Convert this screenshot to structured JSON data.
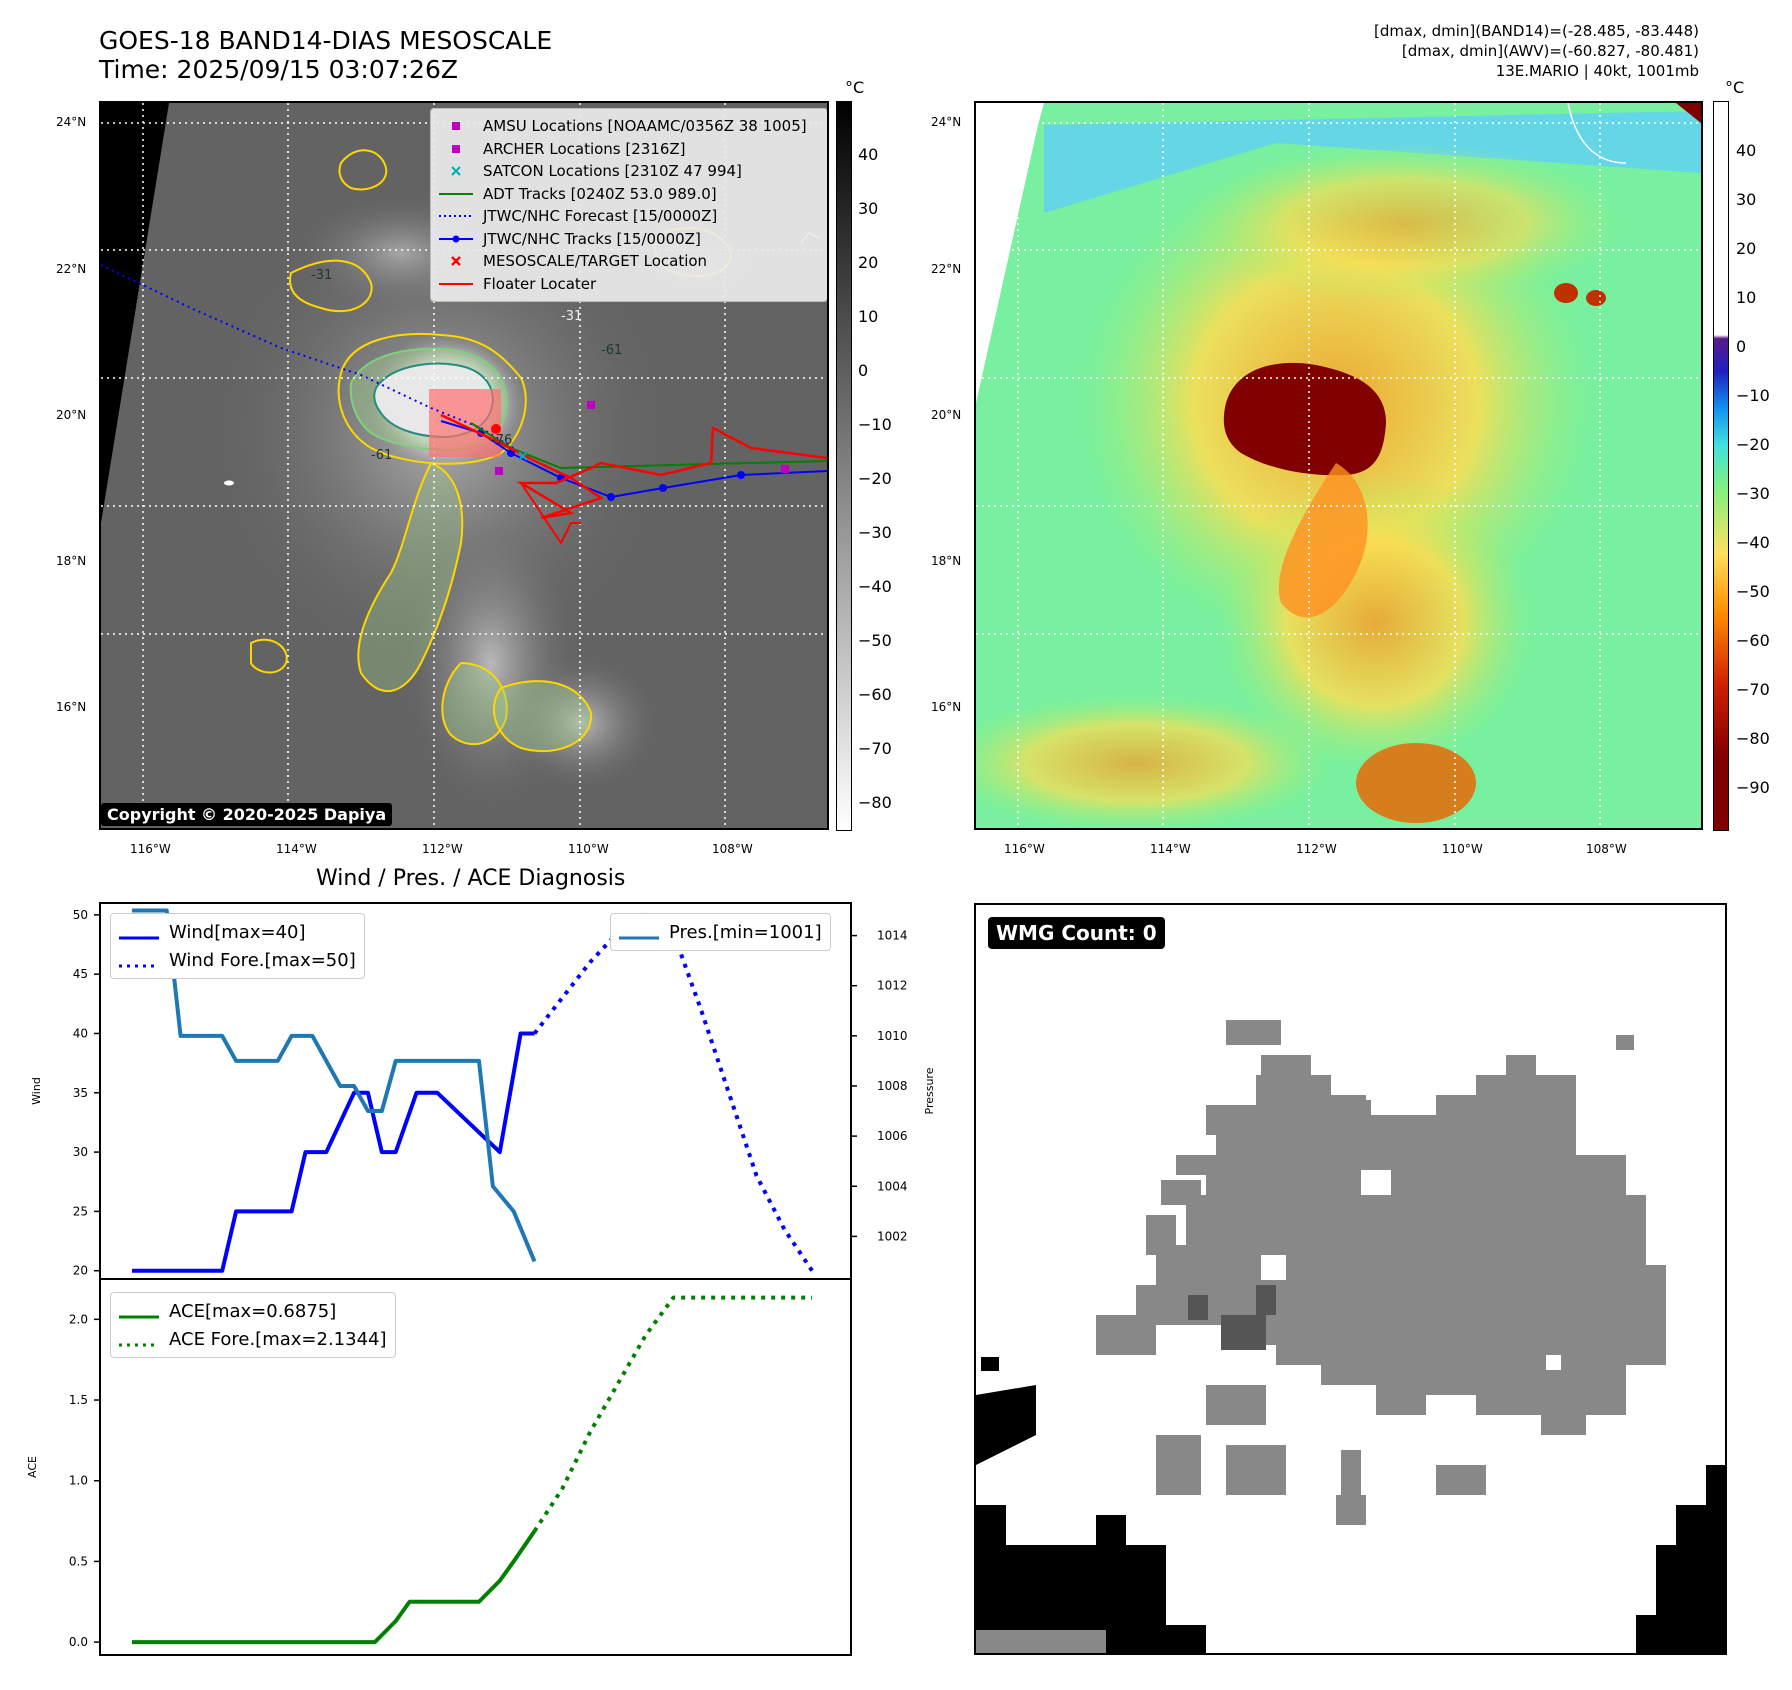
{
  "header": {
    "title_line1": "GOES-18 BAND14-DIAS MESOSCALE",
    "title_line2": "Time: 2025/09/15 03:07:26Z",
    "info_line1": "[dmax, dmin](BAND14)=(-28.485, -83.448)",
    "info_line2": "[dmax, dmin](AWV)=(-60.827, -80.481)",
    "info_line3": "13E.MARIO | 40kt, 1001mb"
  },
  "map_left": {
    "lat_labels": [
      "24°N",
      "22°N",
      "20°N",
      "18°N",
      "16°N"
    ],
    "lon_labels": [
      "116°W",
      "114°W",
      "112°W",
      "110°W",
      "108°W"
    ],
    "copyright": "Copyright © 2020-2025 Dapiya",
    "colorbar_unit": "°C",
    "colorbar_ticks": [
      "40",
      "30",
      "20",
      "10",
      "0",
      "−10",
      "−20",
      "−30",
      "−40",
      "−50",
      "−60",
      "−70",
      "−80"
    ],
    "legend": [
      {
        "label": "AMSU Locations [NOAAMC/0356Z 38 1005]",
        "color": "#c000c0",
        "kind": "square"
      },
      {
        "label": "ARCHER Locations [2316Z]",
        "color": "#c000c0",
        "kind": "square"
      },
      {
        "label": "SATCON Locations [2310Z 47 994]",
        "color": "#00b0b0",
        "kind": "x"
      },
      {
        "label": "ADT Tracks [0240Z 53.0 989.0]",
        "color": "#008000",
        "kind": "line"
      },
      {
        "label": "JTWC/NHC Forecast [15/0000Z]",
        "color": "#0000ff",
        "kind": "dotted"
      },
      {
        "label": "JTWC/NHC Tracks [15/0000Z]",
        "color": "#0000ff",
        "kind": "linedot"
      },
      {
        "label": "MESOSCALE/TARGET Location",
        "color": "#ff0000",
        "kind": "x"
      },
      {
        "label": "Floater Locater",
        "color": "#ff0000",
        "kind": "line"
      }
    ],
    "contour_labels": [
      "-31",
      "-31",
      "-31",
      "-31",
      "-31",
      "-31",
      "-31",
      "-31",
      "-76",
      "-61",
      "-61",
      "-31",
      "-31",
      "-31"
    ]
  },
  "map_right": {
    "lat_labels": [
      "24°N",
      "22°N",
      "20°N",
      "18°N",
      "16°N"
    ],
    "lon_labels": [
      "116°W",
      "114°W",
      "112°W",
      "110°W",
      "108°W"
    ],
    "colorbar_unit": "°C",
    "colorbar_ticks": [
      "40",
      "30",
      "20",
      "10",
      "0",
      "−10",
      "−20",
      "−30",
      "−40",
      "−50",
      "−60",
      "−70",
      "−80",
      "−90"
    ]
  },
  "wmg": {
    "badge": "WMG Count: 0"
  },
  "chart_data": [
    {
      "type": "line",
      "title": "Wind / Pres. / ACE Diagnosis",
      "ylabel": "Wind",
      "ylabel_right": "Pressure",
      "ylim": [
        19.3,
        51
      ],
      "ylim_right": [
        1000.3,
        1015.3
      ],
      "yticks": [
        20,
        25,
        30,
        35,
        40,
        45,
        50
      ],
      "yticks_right": [
        1002,
        1004,
        1006,
        1008,
        1010,
        1012,
        1014
      ],
      "x": [
        0,
        1,
        2,
        3,
        4,
        5,
        6,
        7,
        8,
        9,
        10,
        11,
        12,
        13,
        14,
        15,
        16,
        17,
        18,
        19,
        20,
        21,
        22,
        23,
        24,
        25,
        26,
        27,
        28,
        29,
        30,
        31,
        32,
        33,
        34,
        35,
        36,
        37,
        38,
        39,
        40,
        41,
        42,
        43,
        44,
        45,
        46,
        47,
        48,
        49,
        50,
        51,
        52,
        53,
        54,
        55,
        56,
        57,
        58,
        59,
        60,
        61,
        62,
        63,
        64,
        65,
        66,
        67,
        68,
        69,
        70,
        71,
        72,
        73,
        74,
        75,
        76,
        77,
        78,
        79,
        80,
        81,
        82,
        83,
        84,
        85,
        86,
        87,
        88,
        89,
        90,
        91,
        92,
        93,
        94,
        95,
        96,
        97,
        98,
        99
      ],
      "series": [
        {
          "name": "Wind[max=40]",
          "axis": "left",
          "style": "solid",
          "color": "#0000ff",
          "x": [
            0,
            13,
            15,
            23,
            25,
            28,
            32,
            34,
            36,
            38,
            41,
            44,
            53,
            56,
            58
          ],
          "values": [
            20,
            20,
            25,
            25,
            30,
            30,
            35,
            35,
            30,
            30,
            35,
            35,
            30,
            40,
            40
          ]
        },
        {
          "name": "Wind Fore.[max=50]",
          "axis": "left",
          "style": "dotted",
          "color": "#0000ff",
          "x": [
            58,
            62,
            66,
            70,
            74,
            78,
            82,
            86,
            90,
            94,
            98
          ],
          "values": [
            40,
            43,
            46,
            48.5,
            50,
            48.5,
            42,
            35,
            28,
            23.5,
            20
          ]
        },
        {
          "name": "Pres.[min=1001]",
          "axis": "right",
          "style": "solid",
          "color": "#1f77b4",
          "x": [
            0,
            5,
            7,
            8,
            13,
            15,
            19,
            21,
            23,
            26,
            30,
            32,
            34,
            36,
            38,
            41,
            44,
            46,
            50,
            52,
            55,
            58
          ],
          "values": [
            1015,
            1015,
            1010,
            1010,
            1010,
            1009,
            1009,
            1009,
            1010,
            1010,
            1008,
            1008,
            1007,
            1007,
            1009,
            1009,
            1009,
            1009,
            1009,
            1004,
            1003,
            1001
          ]
        }
      ]
    },
    {
      "type": "line",
      "ylabel": "ACE",
      "ylim": [
        -0.08,
        2.25
      ],
      "yticks": [
        "0.0",
        "0.5",
        "1.0",
        "1.5",
        "2.0"
      ],
      "series": [
        {
          "name": "ACE[max=0.6875]",
          "style": "solid",
          "color": "#008000",
          "x": [
            0,
            5,
            10,
            15,
            20,
            25,
            30,
            35,
            38,
            40,
            45,
            50,
            53,
            55,
            58
          ],
          "values": [
            0,
            0,
            0,
            0,
            0,
            0,
            0,
            0,
            0.13,
            0.25,
            0.25,
            0.25,
            0.38,
            0.5,
            0.6875
          ]
        },
        {
          "name": "ACE Fore.[max=2.1344]",
          "style": "dotted",
          "color": "#008000",
          "x": [
            58,
            62,
            66,
            70,
            74,
            78,
            82,
            86,
            90,
            94,
            98
          ],
          "values": [
            0.6875,
            0.95,
            1.3,
            1.6,
            1.9,
            2.1344,
            2.1344,
            2.1344,
            2.1344,
            2.1344,
            2.1344
          ]
        }
      ]
    }
  ]
}
